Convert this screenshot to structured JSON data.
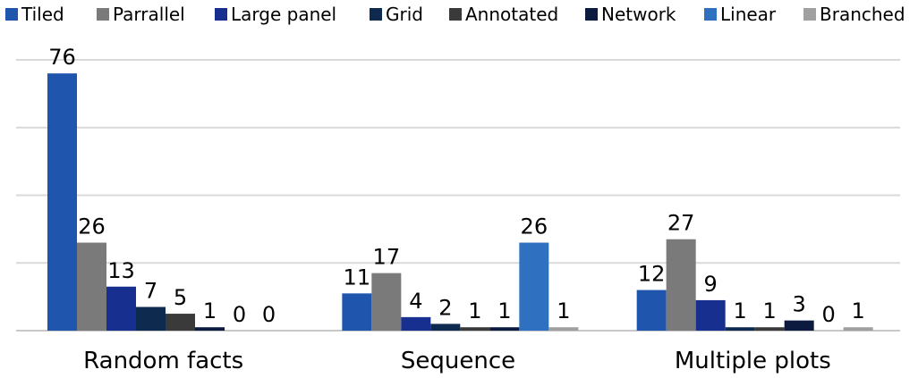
{
  "chart_data": {
    "type": "bar",
    "title": "",
    "xlabel": "",
    "ylabel": "",
    "categories": [
      "Random facts",
      "Sequence",
      "Multiple plots"
    ],
    "ylim": [
      0,
      80
    ],
    "grid": true,
    "legend_position": "top",
    "series": [
      {
        "name": "Tiled",
        "color": "#1f55ad",
        "values": [
          76,
          11,
          12
        ]
      },
      {
        "name": "Parrallel",
        "color": "#7a7a7a",
        "values": [
          26,
          17,
          27
        ]
      },
      {
        "name": "Large panel",
        "color": "#172f8f",
        "values": [
          13,
          4,
          9
        ]
      },
      {
        "name": "Grid",
        "color": "#0e2a4e",
        "values": [
          7,
          2,
          1
        ]
      },
      {
        "name": "Annotated",
        "color": "#3a3a3a",
        "values": [
          5,
          1,
          1
        ]
      },
      {
        "name": "Network",
        "color": "#0b1a3e",
        "values": [
          1,
          1,
          3
        ]
      },
      {
        "name": "Linear",
        "color": "#3070c0",
        "values": [
          0,
          26,
          0
        ]
      },
      {
        "name": "Branched",
        "color": "#a0a0a0",
        "values": [
          0,
          1,
          1
        ]
      }
    ]
  }
}
